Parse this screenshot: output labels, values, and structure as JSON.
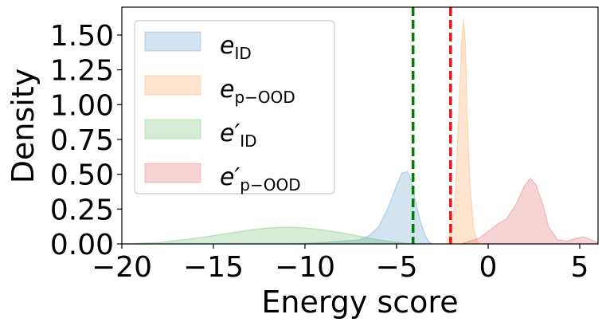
{
  "chart_data": {
    "type": "area",
    "title": "",
    "xlabel": "Energy score",
    "ylabel": "Density",
    "xlim": [
      -20,
      6
    ],
    "ylim": [
      0,
      1.7
    ],
    "xticks": [
      -20,
      -15,
      -10,
      -5,
      0,
      5
    ],
    "xtick_labels": [
      "−20",
      "−15",
      "−10",
      "−5",
      "0",
      "5"
    ],
    "yticks": [
      0,
      0.25,
      0.5,
      0.75,
      1.0,
      1.25,
      1.5
    ],
    "ytick_labels": [
      "0.00",
      "0.25",
      "0.50",
      "0.75",
      "1.00",
      "1.25",
      "1.50"
    ],
    "grid": false,
    "legend_position": "top-left",
    "series": [
      {
        "name": "e",
        "subscript": "ID",
        "prime": false,
        "color": "#1f77b4",
        "x": [
          -20,
          -10.5,
          -9,
          -7,
          -6.5,
          -6,
          -5.5,
          -5,
          -4.7,
          -4.4,
          -4.2,
          -4,
          -3.7,
          -3.4,
          -3.2,
          -3,
          -20
        ],
        "y": [
          0,
          0,
          0.01,
          0.03,
          0.06,
          0.12,
          0.25,
          0.42,
          0.51,
          0.52,
          0.46,
          0.33,
          0.16,
          0.05,
          0.01,
          0,
          0
        ]
      },
      {
        "name": "e",
        "subscript": "p−OOD",
        "prime": false,
        "color": "#ff7f0e",
        "x": [
          -2.3,
          -2.0,
          -1.8,
          -1.6,
          -1.45,
          -1.35,
          -1.25,
          -1.15,
          -1.0,
          -0.8,
          -0.6,
          -0.5
        ],
        "y": [
          0,
          0.1,
          0.35,
          0.95,
          1.45,
          1.62,
          1.45,
          0.95,
          0.45,
          0.12,
          0.02,
          0
        ]
      },
      {
        "name": "e′",
        "subscript": "ID",
        "prime": true,
        "color": "#2ca02c",
        "x": [
          -20,
          -18,
          -16,
          -14,
          -13,
          -12,
          -11,
          -10,
          -9,
          -8,
          -7,
          -6,
          -5,
          -4.5,
          -4
        ],
        "y": [
          0,
          0.01,
          0.04,
          0.08,
          0.1,
          0.115,
          0.12,
          0.115,
          0.1,
          0.08,
          0.055,
          0.03,
          0.012,
          0.005,
          0
        ]
      },
      {
        "name": "e′",
        "subscript": "p−OOD",
        "prime": true,
        "color": "#d62728",
        "x": [
          -1.5,
          -0.5,
          0,
          0.5,
          1,
          1.5,
          2,
          2.3,
          2.6,
          3,
          3.3,
          3.8,
          4.3,
          4.8,
          5.2,
          5.6,
          6
        ],
        "y": [
          0,
          0.04,
          0.09,
          0.14,
          0.18,
          0.28,
          0.42,
          0.47,
          0.43,
          0.28,
          0.12,
          0.03,
          0.02,
          0.04,
          0.05,
          0.03,
          0.01
        ]
      }
    ],
    "vlines": [
      {
        "x": -4.1,
        "color": "#008000",
        "style": "dashed"
      },
      {
        "x": -2.05,
        "color": "#e8141c",
        "style": "dashed"
      }
    ]
  }
}
